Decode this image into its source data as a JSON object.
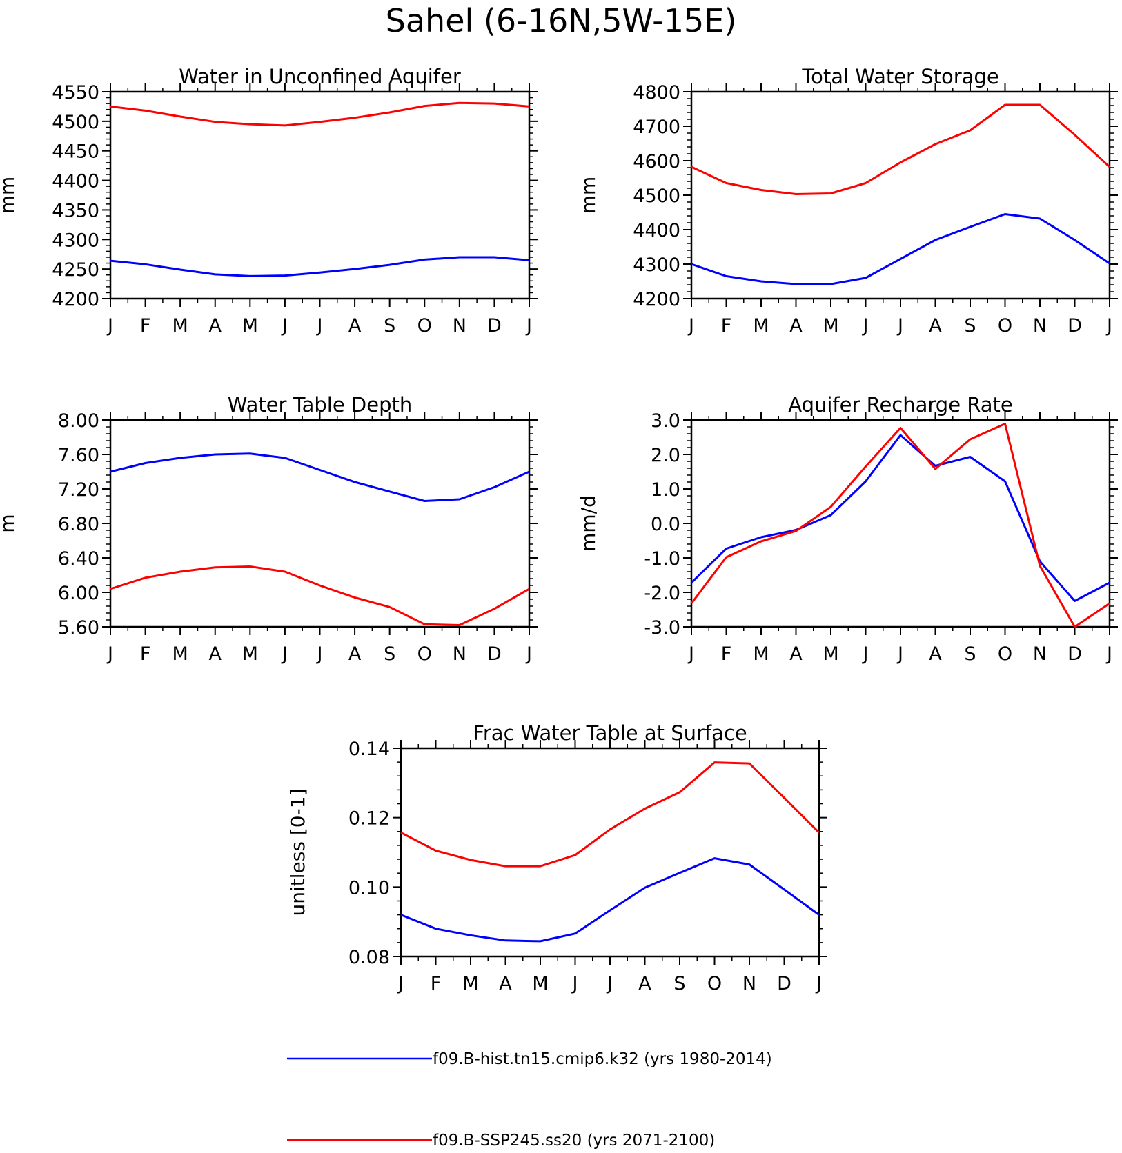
{
  "figure": {
    "title": "Sahel (6-16N,5W-15E)"
  },
  "legend": [
    {
      "label": "f09.B-hist.tn15.cmip6.k32 (yrs 1980-2014)",
      "color": "#0000ff"
    },
    {
      "label": "f09.B-SSP245.ss20 (yrs 2071-2100)",
      "color": "#ff0000"
    }
  ],
  "chart_data": [
    {
      "type": "line",
      "title": "Water in Unconfined Aquifer",
      "ylabel": "mm",
      "categories": [
        "J",
        "F",
        "M",
        "A",
        "M",
        "J",
        "J",
        "A",
        "S",
        "O",
        "N",
        "D",
        "J"
      ],
      "ylim": [
        4200,
        4550
      ],
      "yticks": [
        "4200",
        "4250",
        "4300",
        "4350",
        "4400",
        "4450",
        "4500",
        "4550"
      ],
      "series": [
        {
          "color": "#0000ff",
          "values": [
            4264,
            4258,
            4249,
            4241,
            4238,
            4239,
            4244,
            4250,
            4257,
            4266,
            4270,
            4270,
            4265
          ]
        },
        {
          "color": "#ff0000",
          "values": [
            4525,
            4518,
            4508,
            4499,
            4495,
            4493,
            4499,
            4506,
            4515,
            4526,
            4531,
            4530,
            4525
          ]
        }
      ]
    },
    {
      "type": "line",
      "title": "Total Water Storage",
      "ylabel": "mm",
      "categories": [
        "J",
        "F",
        "M",
        "A",
        "M",
        "J",
        "J",
        "A",
        "S",
        "O",
        "N",
        "D",
        "J"
      ],
      "ylim": [
        4200,
        4800
      ],
      "yticks": [
        "4200",
        "4300",
        "4400",
        "4500",
        "4600",
        "4700",
        "4800"
      ],
      "series": [
        {
          "color": "#0000ff",
          "values": [
            4300,
            4265,
            4250,
            4242,
            4242,
            4260,
            4315,
            4370,
            4408,
            4445,
            4432,
            4370,
            4302
          ]
        },
        {
          "color": "#ff0000",
          "values": [
            4582,
            4535,
            4515,
            4503,
            4505,
            4535,
            4595,
            4648,
            4688,
            4762,
            4762,
            4675,
            4582
          ]
        }
      ]
    },
    {
      "type": "line",
      "title": "Water Table Depth",
      "ylabel": "m",
      "categories": [
        "J",
        "F",
        "M",
        "A",
        "M",
        "J",
        "J",
        "A",
        "S",
        "O",
        "N",
        "D",
        "J"
      ],
      "ylim": [
        5.6,
        8.0
      ],
      "yticks": [
        "5.60",
        "6.00",
        "6.40",
        "6.80",
        "7.20",
        "7.60",
        "8.00"
      ],
      "series": [
        {
          "color": "#0000ff",
          "values": [
            7.4,
            7.5,
            7.56,
            7.6,
            7.61,
            7.56,
            7.42,
            7.28,
            7.17,
            7.06,
            7.08,
            7.22,
            7.4
          ]
        },
        {
          "color": "#ff0000",
          "values": [
            6.04,
            6.17,
            6.24,
            6.29,
            6.3,
            6.24,
            6.08,
            5.94,
            5.83,
            5.63,
            5.62,
            5.81,
            6.04
          ]
        }
      ]
    },
    {
      "type": "line",
      "title": "Aquifer Recharge Rate",
      "ylabel": "mm/d",
      "categories": [
        "J",
        "F",
        "M",
        "A",
        "M",
        "J",
        "J",
        "A",
        "S",
        "O",
        "N",
        "D",
        "J"
      ],
      "ylim": [
        -3.0,
        3.0
      ],
      "yticks": [
        "-3.0",
        "-2.0",
        "-1.0",
        "0.0",
        "1.0",
        "2.0",
        "3.0"
      ],
      "series": [
        {
          "color": "#0000ff",
          "values": [
            -1.72,
            -0.73,
            -0.4,
            -0.19,
            0.24,
            1.22,
            2.56,
            1.67,
            1.93,
            1.22,
            -1.1,
            -2.25,
            -1.72
          ]
        },
        {
          "color": "#ff0000",
          "values": [
            -2.32,
            -0.98,
            -0.52,
            -0.22,
            0.48,
            1.65,
            2.77,
            1.58,
            2.44,
            2.89,
            -1.23,
            -3.0,
            -2.32
          ]
        }
      ]
    },
    {
      "type": "line",
      "title": "Frac Water Table at Surface",
      "ylabel": "unitless [0-1]",
      "categories": [
        "J",
        "F",
        "M",
        "A",
        "M",
        "J",
        "J",
        "A",
        "S",
        "O",
        "N",
        "D",
        "J"
      ],
      "ylim": [
        0.08,
        0.14
      ],
      "yticks": [
        "0.08",
        "0.10",
        "0.12",
        "0.14"
      ],
      "series": [
        {
          "color": "#0000ff",
          "values": [
            0.092,
            0.088,
            0.0861,
            0.0846,
            0.0844,
            0.0866,
            0.0933,
            0.0998,
            0.1041,
            0.1083,
            0.1065,
            0.0993,
            0.092
          ]
        },
        {
          "color": "#ff0000",
          "values": [
            0.1157,
            0.1105,
            0.1078,
            0.106,
            0.106,
            0.1092,
            0.1166,
            0.1226,
            0.1273,
            0.1359,
            0.1356,
            0.1257,
            0.1157
          ]
        }
      ]
    }
  ]
}
